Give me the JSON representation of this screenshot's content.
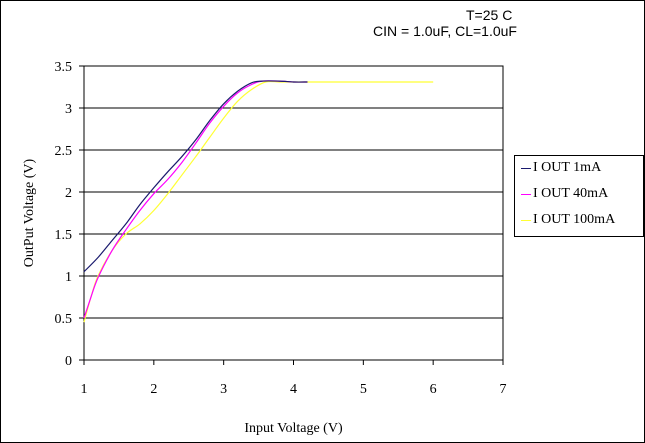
{
  "annotations": [
    "T=25 C",
    "CIN = 1.0uF, CL=1.0uF"
  ],
  "chart_data": {
    "type": "line",
    "xlabel": "Input Voltage (V)",
    "ylabel": "OutPut Voltage (V)",
    "xlim": [
      1,
      7
    ],
    "ylim": [
      0,
      3.5
    ],
    "xticks": [
      1,
      2,
      3,
      4,
      5,
      6,
      7
    ],
    "yticks": [
      0,
      0.5,
      1,
      1.5,
      2,
      2.5,
      3,
      3.5
    ],
    "x_tick_labels": [
      "1",
      "2",
      "3",
      "4",
      "5",
      "6",
      "7"
    ],
    "y_tick_labels": [
      "0",
      "0.5",
      "1",
      "1.5",
      "2",
      "2.5",
      "3",
      "3.5"
    ],
    "grid": "horizontal",
    "legend_position": "right",
    "series": [
      {
        "name": "I OUT 1mA",
        "color": "#1a1a6e",
        "x": [
          1.0,
          1.2,
          1.4,
          1.6,
          1.8,
          2.0,
          2.2,
          2.4,
          2.6,
          2.8,
          3.0,
          3.2,
          3.4,
          3.55,
          3.8,
          4.0,
          4.2
        ],
        "y": [
          1.05,
          1.22,
          1.42,
          1.62,
          1.85,
          2.05,
          2.24,
          2.42,
          2.62,
          2.85,
          3.05,
          3.2,
          3.3,
          3.32,
          3.32,
          3.31,
          3.31
        ]
      },
      {
        "name": "I OUT 40mA",
        "color": "#ff00ff",
        "x": [
          1.0,
          1.1,
          1.2,
          1.4,
          1.6,
          1.8,
          2.0,
          2.2,
          2.4,
          2.6,
          2.8,
          3.0,
          3.2,
          3.4,
          3.55,
          3.8,
          4.0,
          4.2
        ],
        "y": [
          0.5,
          0.75,
          0.98,
          1.3,
          1.55,
          1.78,
          1.98,
          2.15,
          2.35,
          2.58,
          2.82,
          3.02,
          3.18,
          3.28,
          3.32,
          3.32,
          3.31,
          3.31
        ]
      },
      {
        "name": "I OUT 100mA",
        "color": "#ffff33",
        "x": [
          1.0,
          1.1,
          1.2,
          1.4,
          1.6,
          1.8,
          2.0,
          2.2,
          2.4,
          2.6,
          2.8,
          3.0,
          3.2,
          3.4,
          3.6,
          3.8,
          4.0,
          5.0,
          6.0
        ],
        "y": [
          0.45,
          0.75,
          1.0,
          1.3,
          1.5,
          1.62,
          1.78,
          1.98,
          2.2,
          2.42,
          2.65,
          2.88,
          3.08,
          3.22,
          3.31,
          3.31,
          3.31,
          3.31,
          3.31
        ]
      }
    ]
  }
}
